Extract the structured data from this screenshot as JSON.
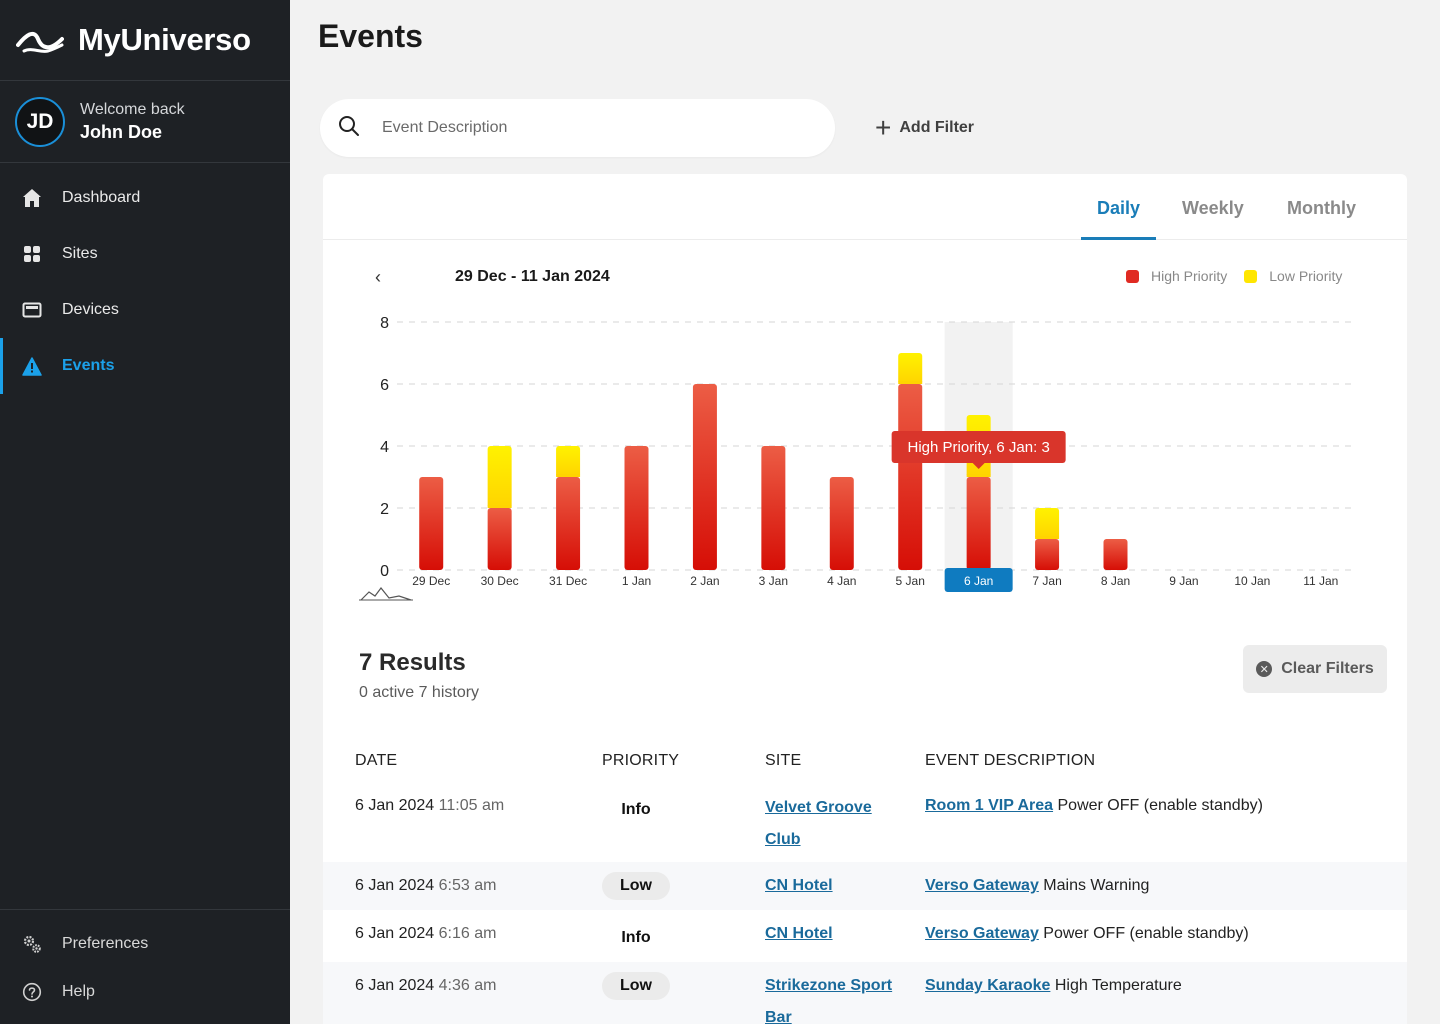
{
  "app": {
    "brand": "MyUniverso",
    "user": {
      "initials": "JD",
      "welcome": "Welcome back",
      "name": "John Doe"
    },
    "nav": [
      {
        "label": "Dashboard",
        "icon": "home-icon"
      },
      {
        "label": "Sites",
        "icon": "grid-icon"
      },
      {
        "label": "Devices",
        "icon": "device-icon"
      },
      {
        "label": "Events",
        "icon": "warning-icon",
        "active": true
      }
    ],
    "nav_bottom": [
      {
        "label": "Preferences",
        "icon": "gears-icon"
      },
      {
        "label": "Help",
        "icon": "help-icon"
      }
    ],
    "accent": "#1ba1ea"
  },
  "page": {
    "title": "Events",
    "search_placeholder": "Event Description",
    "add_filter": "Add Filter"
  },
  "tabs": {
    "daily": "Daily",
    "weekly": "Weekly",
    "monthly": "Monthly",
    "active": "daily"
  },
  "range": {
    "label": "29 Dec - 11 Jan 2024"
  },
  "chart_data": {
    "type": "bar",
    "stacked": true,
    "categories": [
      "29 Dec",
      "30 Dec",
      "31 Dec",
      "1 Jan",
      "2 Jan",
      "3 Jan",
      "4 Jan",
      "5 Jan",
      "6 Jan",
      "7 Jan",
      "8 Jan",
      "9 Jan",
      "10 Jan",
      "11 Jan"
    ],
    "series": [
      {
        "name": "High Priority",
        "color": "#e8291c",
        "values": [
          3,
          2,
          3,
          4,
          6,
          4,
          3,
          6,
          3,
          1,
          1,
          0,
          0,
          0
        ]
      },
      {
        "name": "Low Priority",
        "color": "#ffe600",
        "values": [
          0,
          2,
          1,
          0,
          0,
          0,
          0,
          1,
          2,
          1,
          0,
          0,
          0,
          0
        ]
      }
    ],
    "yticks": [
      0,
      2,
      4,
      6,
      8
    ],
    "ylim": [
      0,
      8
    ],
    "grid": true,
    "legend": "top-right",
    "selected_category": "6 Jan",
    "tooltip": "High Priority, 6 Jan: 3"
  },
  "results": {
    "title": "7 Results",
    "sub": "0 active 7 history",
    "clear": "Clear Filters"
  },
  "table": {
    "headers": {
      "date": "DATE",
      "priority": "PRIORITY",
      "site": "SITE",
      "desc": "EVENT DESCRIPTION"
    },
    "rows": [
      {
        "date": "6 Jan 2024",
        "time": "11:05 am",
        "priority": "Info",
        "site_l1": "Velvet Groove",
        "site_l2": "Club",
        "device": "Room 1 VIP Area",
        "desc": "Power OFF (enable standby)"
      },
      {
        "date": "6 Jan 2024",
        "time": "6:53 am",
        "priority": "Low",
        "site_l1": "CN Hotel",
        "site_l2": "",
        "device": "Verso Gateway",
        "desc": "Mains Warning"
      },
      {
        "date": "6 Jan 2024",
        "time": "6:16 am",
        "priority": "Info",
        "site_l1": "CN Hotel",
        "site_l2": "",
        "device": "Verso Gateway",
        "desc": "Power OFF (enable standby)"
      },
      {
        "date": "6 Jan 2024",
        "time": "4:36 am",
        "priority": "Low",
        "site_l1": "Strikezone Sport",
        "site_l2": "Bar",
        "device": "Sunday Karaoke",
        "desc": "High Temperature"
      }
    ]
  }
}
